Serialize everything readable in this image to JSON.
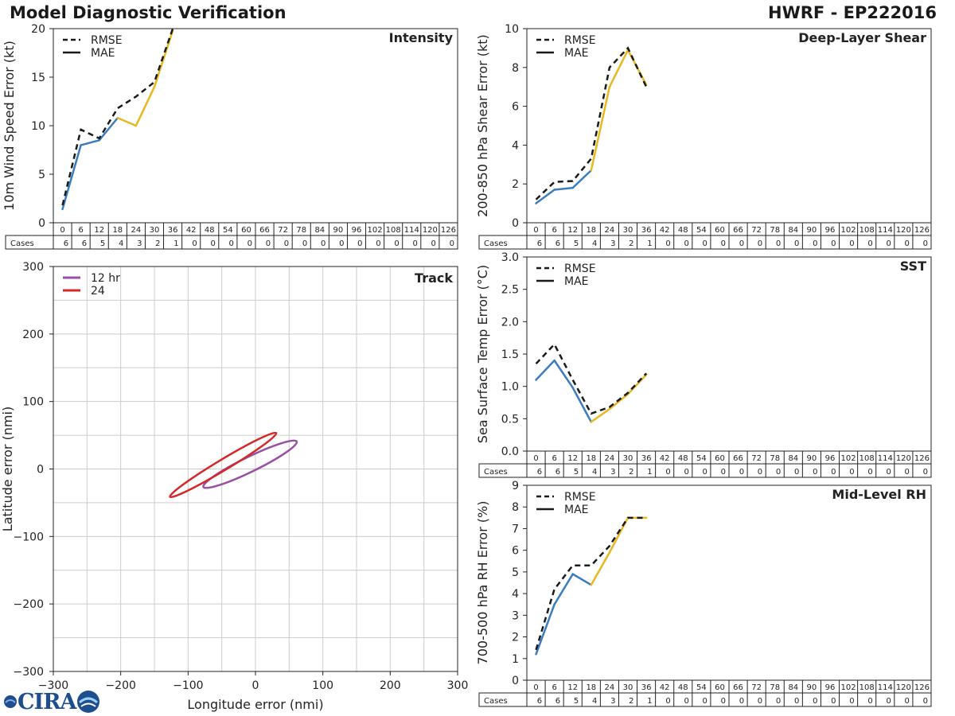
{
  "header": {
    "title": "Model Diagnostic Verification",
    "storm_id": "HWRF - EP222016"
  },
  "logo": {
    "text": "CIRA"
  },
  "colors": {
    "early": "#3a7dbf",
    "late": "#e8b820",
    "rmse": "#1a1a1a",
    "track12": "#984ea3",
    "track24": "#d62728",
    "grid": "#cccccc"
  },
  "table": {
    "hours": [
      "0",
      "6",
      "12",
      "18",
      "24",
      "30",
      "36",
      "42",
      "48",
      "54",
      "60",
      "66",
      "72",
      "78",
      "84",
      "90",
      "96",
      "102",
      "108",
      "114",
      "120",
      "126"
    ],
    "cases_label": "Cases"
  },
  "chart_data": [
    {
      "id": "intensity",
      "type": "line",
      "title": "Intensity",
      "ylabel": "10m Wind Speed Error (kt)",
      "ylim": [
        0,
        20
      ],
      "yticks": [
        "0",
        "5",
        "10",
        "15",
        "20"
      ],
      "legend": [
        "RMSE",
        "MAE"
      ],
      "legend_position": "top-left",
      "x": [
        0,
        6,
        12,
        18,
        24,
        30,
        36
      ],
      "series": [
        {
          "name": "RMSE",
          "style": "dashed",
          "values": [
            1.8,
            9.6,
            8.7,
            11.8,
            13.0,
            14.5,
            20.0
          ]
        },
        {
          "name": "MAE",
          "style": "solid",
          "values": [
            1.4,
            8.0,
            8.5,
            10.8,
            10.0,
            14.0,
            19.8
          ]
        }
      ],
      "cases": [
        "6",
        "6",
        "5",
        "4",
        "3",
        "2",
        "1",
        "0",
        "0",
        "0",
        "0",
        "0",
        "0",
        "0",
        "0",
        "0",
        "0",
        "0",
        "0",
        "0",
        "0",
        "0"
      ]
    },
    {
      "id": "shear",
      "type": "line",
      "title": "Deep-Layer Shear",
      "ylabel": "200-850 hPa Shear Error (kt)",
      "ylim": [
        0,
        10
      ],
      "yticks": [
        "0",
        "2",
        "4",
        "6",
        "8",
        "10"
      ],
      "legend": [
        "RMSE",
        "MAE"
      ],
      "legend_position": "top-left",
      "x": [
        0,
        6,
        12,
        18,
        24,
        30,
        36
      ],
      "series": [
        {
          "name": "RMSE",
          "style": "dashed",
          "values": [
            1.2,
            2.1,
            2.15,
            3.3,
            8.0,
            9.0,
            7.0
          ]
        },
        {
          "name": "MAE",
          "style": "solid",
          "values": [
            1.0,
            1.7,
            1.8,
            2.7,
            7.0,
            8.9,
            7.1
          ]
        }
      ],
      "cases": [
        "6",
        "6",
        "5",
        "4",
        "3",
        "2",
        "1",
        "0",
        "0",
        "0",
        "0",
        "0",
        "0",
        "0",
        "0",
        "0",
        "0",
        "0",
        "0",
        "0",
        "0",
        "0"
      ]
    },
    {
      "id": "sst",
      "type": "line",
      "title": "SST",
      "ylabel": "Sea Surface Temp Error (°C)",
      "ylim": [
        0,
        3
      ],
      "yticks": [
        "0.0",
        "0.5",
        "1.0",
        "1.5",
        "2.0",
        "2.5",
        "3.0"
      ],
      "legend": [
        "RMSE",
        "MAE"
      ],
      "legend_position": "top-left",
      "x": [
        0,
        6,
        12,
        18,
        24,
        30,
        36
      ],
      "series": [
        {
          "name": "RMSE",
          "style": "dashed",
          "values": [
            1.35,
            1.65,
            1.1,
            0.58,
            0.68,
            0.9,
            1.2
          ]
        },
        {
          "name": "MAE",
          "style": "solid",
          "values": [
            1.1,
            1.4,
            0.98,
            0.45,
            0.65,
            0.88,
            1.18
          ]
        }
      ],
      "cases": [
        "6",
        "6",
        "5",
        "4",
        "3",
        "2",
        "1",
        "0",
        "0",
        "0",
        "0",
        "0",
        "0",
        "0",
        "0",
        "0",
        "0",
        "0",
        "0",
        "0",
        "0",
        "0"
      ]
    },
    {
      "id": "rh",
      "type": "line",
      "title": "Mid-Level RH",
      "ylabel": "700-500 hPa RH Error (%)",
      "ylim": [
        0,
        9
      ],
      "yticks": [
        "0",
        "1",
        "2",
        "3",
        "4",
        "5",
        "6",
        "7",
        "8",
        "9"
      ],
      "legend": [
        "RMSE",
        "MAE"
      ],
      "legend_position": "top-left",
      "x": [
        0,
        6,
        12,
        18,
        24,
        30,
        36
      ],
      "series": [
        {
          "name": "RMSE",
          "style": "dashed",
          "values": [
            1.4,
            4.2,
            5.3,
            5.3,
            6.2,
            7.5,
            7.5
          ]
        },
        {
          "name": "MAE",
          "style": "solid",
          "values": [
            1.2,
            3.5,
            4.9,
            4.4,
            5.9,
            7.5,
            7.5
          ]
        }
      ],
      "cases": [
        "6",
        "6",
        "5",
        "4",
        "3",
        "2",
        "1",
        "0",
        "0",
        "0",
        "0",
        "0",
        "0",
        "0",
        "0",
        "0",
        "0",
        "0",
        "0",
        "0",
        "0",
        "0"
      ]
    },
    {
      "id": "track",
      "type": "scatter",
      "title": "Track",
      "xlabel": "Longitude error (nmi)",
      "ylabel": "Latitude error (nmi)",
      "xlim": [
        -300,
        300
      ],
      "ylim": [
        -300,
        300
      ],
      "xticks": [
        "−300",
        "−200",
        "−100",
        "0",
        "100",
        "200",
        "300"
      ],
      "yticks": [
        "−300",
        "−200",
        "−100",
        "0",
        "100",
        "200",
        "300"
      ],
      "grid_step": 50,
      "legend": [
        "12 hr",
        "24"
      ],
      "legend_position": "top-left",
      "ellipses": [
        {
          "name": "12 hr",
          "center": [
            -8,
            7
          ],
          "semi_major": 77,
          "semi_minor": 11,
          "angle_deg": 26
        },
        {
          "name": "24",
          "center": [
            -48,
            6
          ],
          "semi_major": 92,
          "semi_minor": 8,
          "angle_deg": 31
        }
      ]
    }
  ]
}
